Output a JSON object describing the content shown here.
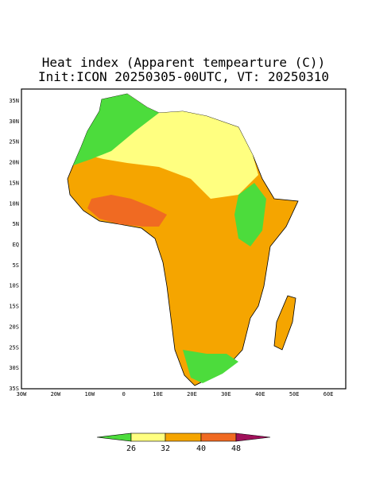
{
  "title": "Heat index (Apparent tempearture (C))",
  "subtitle": "Init:ICON 20250305-00UTC, VT: 20250310",
  "lat_labels": [
    "35N",
    "30N",
    "25N",
    "20N",
    "15N",
    "10N",
    "5N",
    "EQ",
    "5S",
    "10S",
    "15S",
    "20S",
    "25S",
    "30S",
    "35S"
  ],
  "lon_labels": [
    "30W",
    "20W",
    "10W",
    "0",
    "10E",
    "20E",
    "30E",
    "40E",
    "50E",
    "60E"
  ],
  "colorbar_labels": [
    "26",
    "32",
    "40",
    "48"
  ]
}
